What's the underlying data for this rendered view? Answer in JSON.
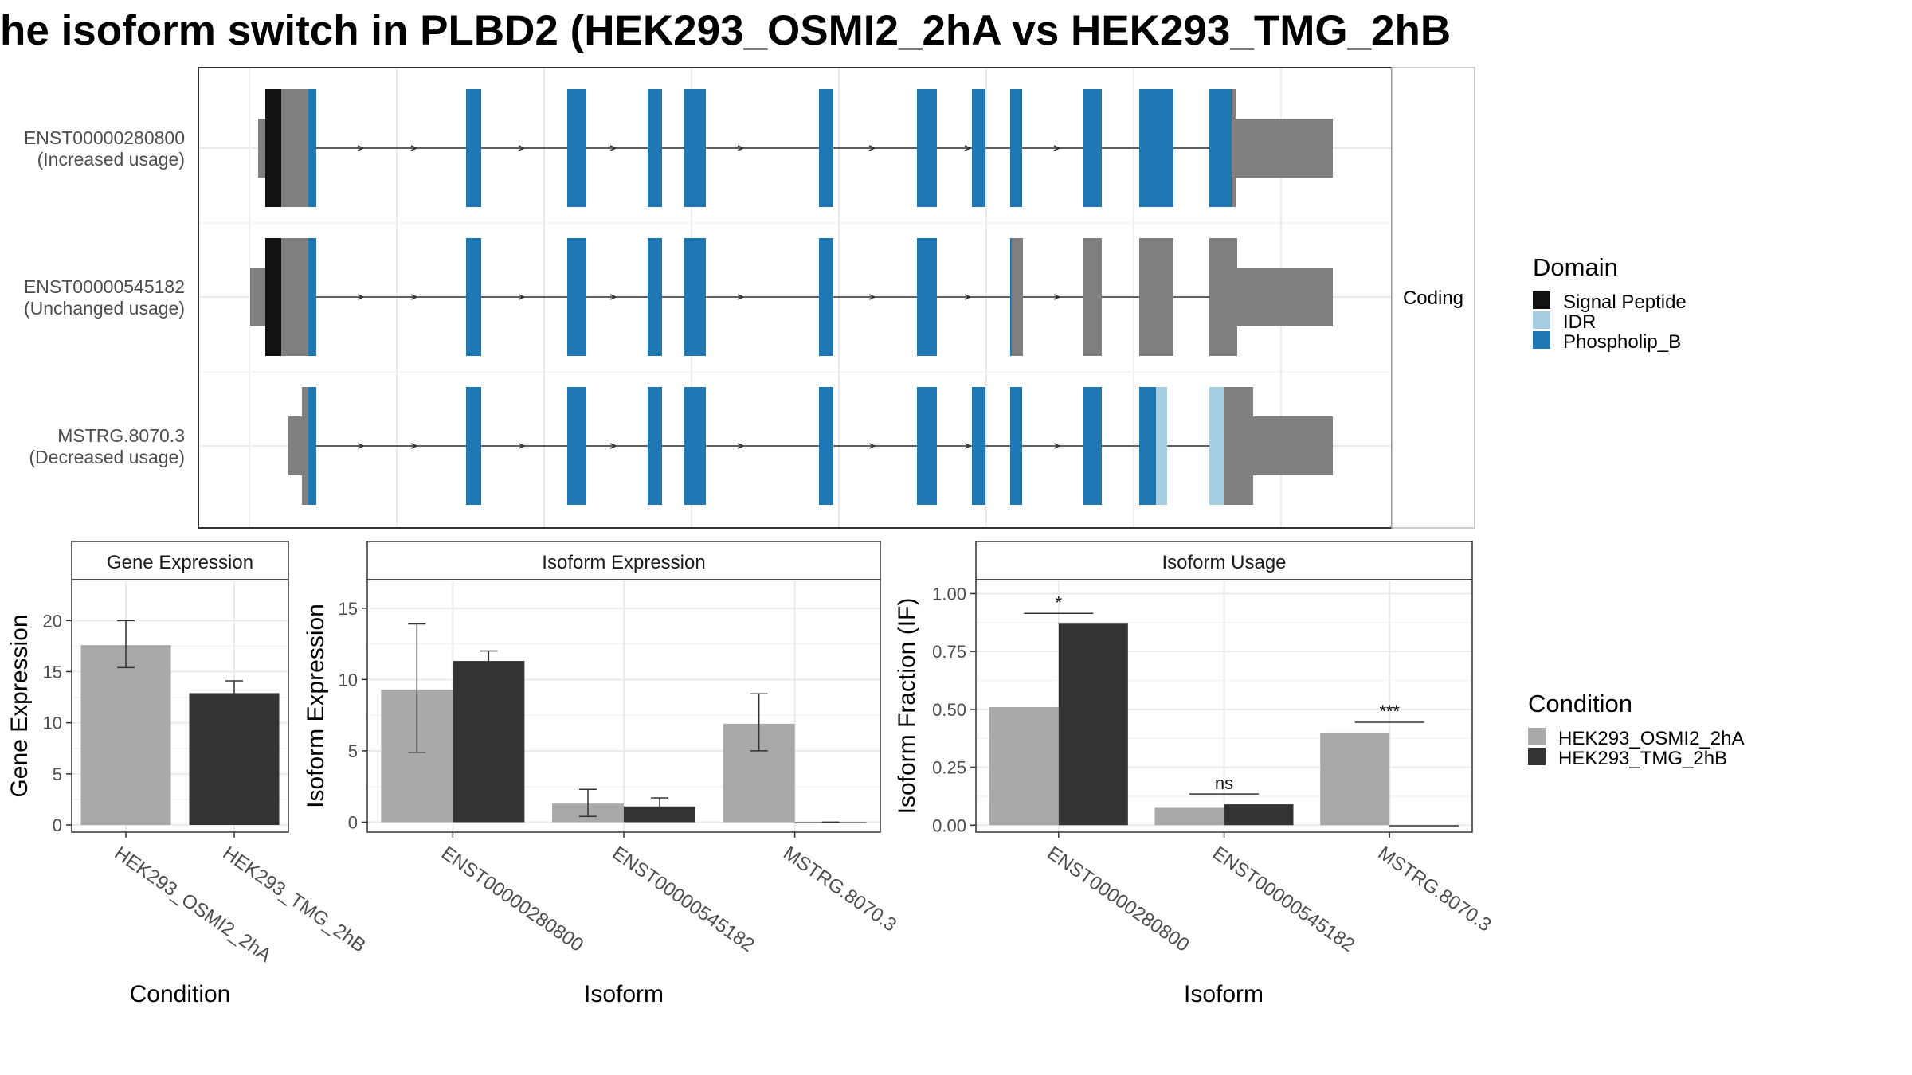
{
  "title": "he isoform switch in PLBD2 (HEK293_OSMI2_2hA vs HEK293_TMG_2hB",
  "colors": {
    "signal_peptide": "#111111",
    "idr": "#a6cee3",
    "phospholip_b": "#1f78b4",
    "non_domain": "#808080",
    "cond_a": "#a9a9a9",
    "cond_b": "#333333"
  },
  "structure": {
    "facet_label": "Coding",
    "transcripts": [
      {
        "id": "ENST00000280800",
        "usage": "(Increased usage)"
      },
      {
        "id": "ENST00000545182",
        "usage": "(Unchanged usage)"
      },
      {
        "id": "MSTRG.8070.3",
        "usage": "(Decreased usage)"
      }
    ]
  },
  "domain_legend": {
    "title": "Domain",
    "items": [
      "Signal Peptide",
      "IDR",
      "Phospholip_B"
    ]
  },
  "condition_legend": {
    "title": "Condition",
    "items": [
      "HEK293_OSMI2_2hA",
      "HEK293_TMG_2hB"
    ]
  },
  "chart_data": [
    {
      "type": "bar",
      "title": "Gene Expression",
      "xlabel": "Condition",
      "ylabel": "Gene Expression",
      "categories": [
        "HEK293_OSMI2_2hA",
        "HEK293_TMG_2hB"
      ],
      "values": [
        17.6,
        12.9
      ],
      "errors": [
        [
          15.4,
          20.0
        ],
        [
          12.0,
          14.1
        ]
      ],
      "ylim": [
        -0.7,
        24
      ],
      "yticks": [
        0,
        5,
        10,
        15,
        20
      ]
    },
    {
      "type": "bar",
      "title": "Isoform Expression",
      "xlabel": "Isoform",
      "ylabel": "Isoform Expression",
      "categories": [
        "ENST00000280800",
        "ENST00000545182",
        "MSTRG.8070.3"
      ],
      "series": [
        {
          "name": "HEK293_OSMI2_2hA",
          "values": [
            9.3,
            1.3,
            6.9
          ],
          "errors": [
            [
              4.9,
              13.9
            ],
            [
              0.4,
              2.3
            ],
            [
              5.0,
              9.0
            ]
          ]
        },
        {
          "name": "HEK293_TMG_2hB",
          "values": [
            11.3,
            1.1,
            0.0
          ],
          "errors": [
            [
              10.6,
              12.0
            ],
            [
              0.6,
              1.7
            ],
            [
              0.0,
              0.0
            ]
          ]
        }
      ],
      "ylim": [
        -0.7,
        17
      ],
      "yticks": [
        0,
        5,
        10,
        15
      ]
    },
    {
      "type": "bar",
      "title": "Isoform Usage",
      "xlabel": "Isoform",
      "ylabel": "Isoform Fraction (IF)",
      "categories": [
        "ENST00000280800",
        "ENST00000545182",
        "MSTRG.8070.3"
      ],
      "series": [
        {
          "name": "HEK293_OSMI2_2hA",
          "values": [
            0.51,
            0.075,
            0.4
          ]
        },
        {
          "name": "HEK293_TMG_2hB",
          "values": [
            0.87,
            0.09,
            0.0
          ]
        }
      ],
      "significance": [
        "*",
        "ns",
        "***"
      ],
      "ylim": [
        -0.03,
        1.06
      ],
      "yticks": [
        "0.00",
        "0.25",
        "0.50",
        "0.75",
        "1.00"
      ]
    }
  ]
}
